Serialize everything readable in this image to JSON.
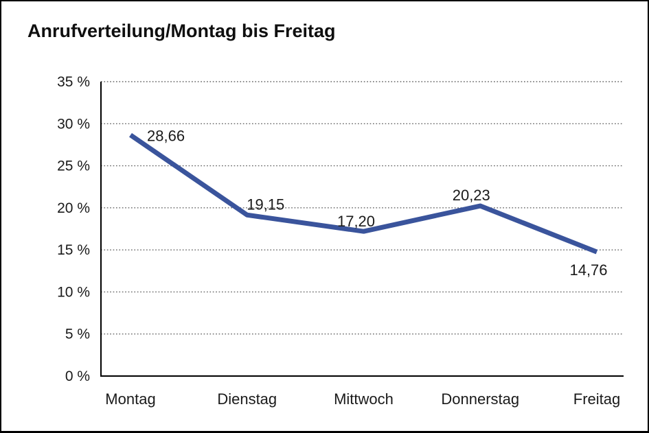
{
  "title": "Anrufverteilung/Montag bis Freitag",
  "chart_data": {
    "type": "line",
    "title": "Anrufverteilung/Montag bis Freitag",
    "categories": [
      "Montag",
      "Dienstag",
      "Mittwoch",
      "Donnerstag",
      "Freitag"
    ],
    "series": [
      {
        "name": "Anrufverteilung",
        "values": [
          28.66,
          19.15,
          17.2,
          20.23,
          14.76
        ]
      }
    ],
    "point_labels": [
      "28,66",
      "19,15",
      "17,20",
      "20,23",
      "14,76"
    ],
    "y_tick_labels": [
      "0 %",
      "5 %",
      "10 %",
      "15 %",
      "20 %",
      "25 %",
      "30 %",
      "35 %"
    ],
    "y_ticks": [
      0,
      5,
      10,
      15,
      20,
      25,
      30,
      35
    ],
    "ylim": [
      0,
      35
    ],
    "xlabel": "",
    "ylabel": "",
    "legend": "none",
    "grid": "horizontal-dotted",
    "line_color": "#3A549C",
    "grid_color": "#666666",
    "axis_color": "#000000",
    "text_color": "#1a1a1a"
  }
}
